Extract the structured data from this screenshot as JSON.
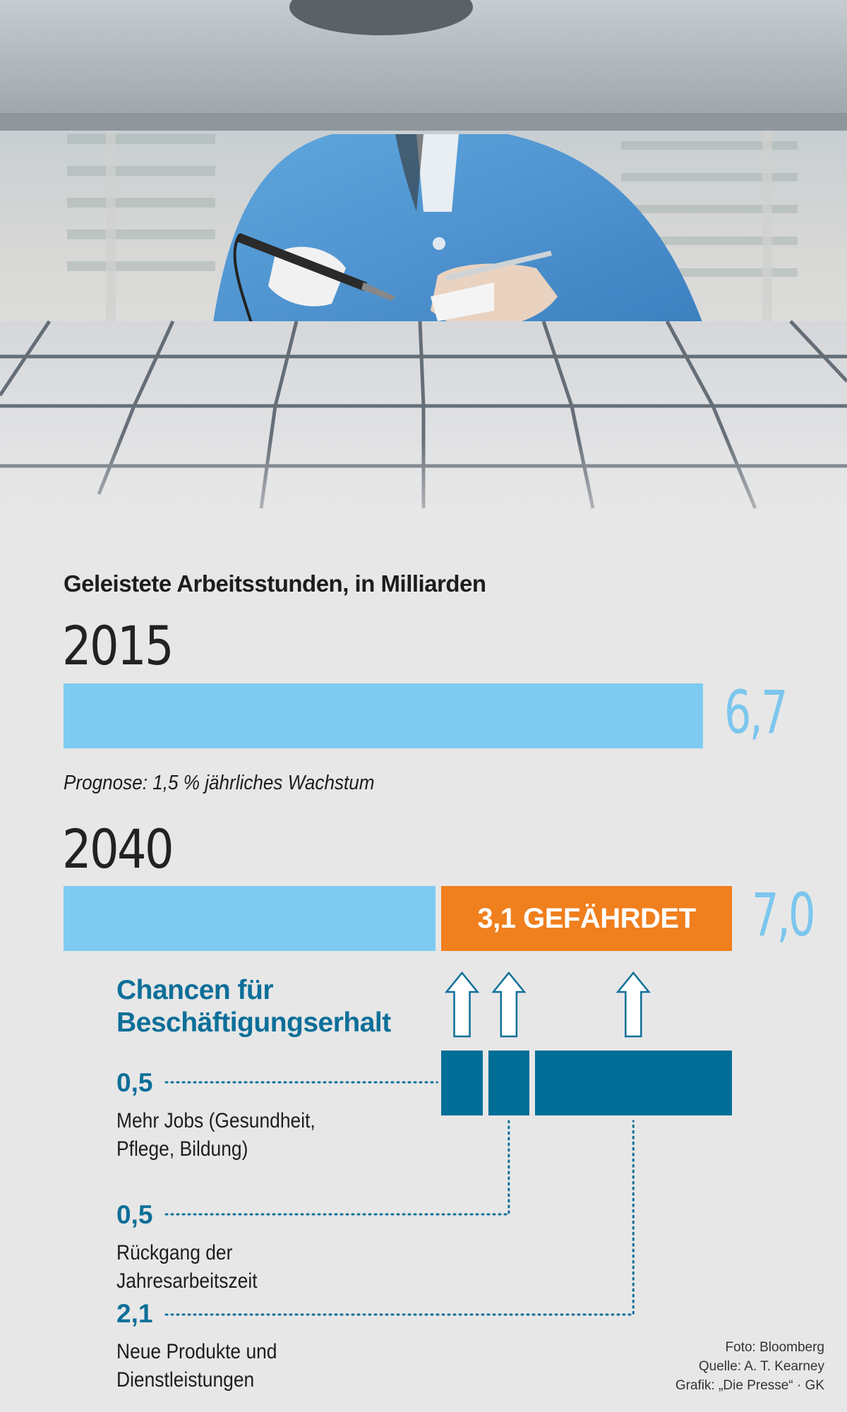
{
  "photo": {
    "credit": "Foto: Bloomberg"
  },
  "chart_data": {
    "type": "bar",
    "title": "Geleistete Arbeitsstunden, in Milliarden",
    "years": [
      {
        "year": "2015",
        "total": 6.7,
        "total_label": "6,7"
      },
      {
        "year": "2040",
        "total": 7.0,
        "total_label": "7,0",
        "at_risk": 3.1,
        "at_risk_label": "3,1 GEFÄHRDET"
      }
    ],
    "forecast_note": "Prognose: 1,5 % jährliches Wachstum",
    "opportunities_heading": "Chancen für Beschäftigungserhalt",
    "opportunities": [
      {
        "value": 0.5,
        "value_label": "0,5",
        "label": "Mehr Jobs (Gesundheit, Pflege, Bildung)"
      },
      {
        "value": 0.5,
        "value_label": "0,5",
        "label": "Rückgang der Jahresarbeitszeit"
      },
      {
        "value": 2.1,
        "value_label": "2,1",
        "label": "Neue Produkte und Dienstleistungen"
      }
    ],
    "colors": {
      "bar": "#7ecbf1",
      "at_risk": "#f07f1d",
      "opportunity": "#006e97",
      "accent_text": "#0d6f99"
    }
  },
  "credits": {
    "source": "Quelle: A. T. Kearney",
    "graphic": "Grafik: „Die Presse“ · GK"
  }
}
